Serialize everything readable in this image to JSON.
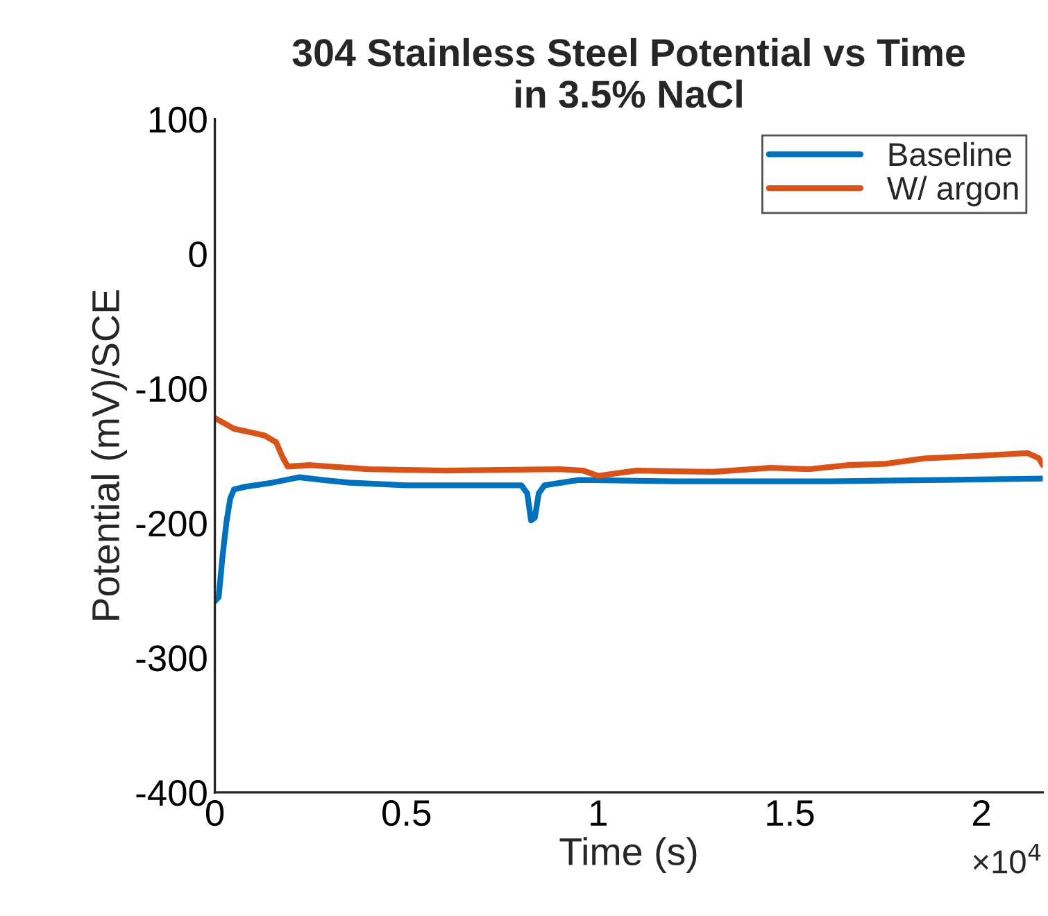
{
  "chart_data": {
    "type": "line",
    "title": "304 Stainless Steel Potential vs Time\nin 3.5% NaCl",
    "xlabel": "Time (s)",
    "ylabel": "Potential (mV)/SCE",
    "xlim": [
      0,
      2.16
    ],
    "ylim": [
      -400,
      100
    ],
    "xticks": [
      0,
      0.5,
      1,
      1.5,
      2
    ],
    "yticks": [
      -400,
      -300,
      -200,
      -100,
      0,
      100
    ],
    "annotations": [
      "×10$^{4}$"
    ],
    "legend": "top right",
    "grid": false,
    "marker": "none",
    "line_style": "solid",
    "series": [
      {
        "name": "Baseline",
        "color": "#0072bd",
        "x": [
          0,
          0.01,
          0.02,
          0.03,
          0.04,
          0.05,
          0.08,
          0.15,
          0.22,
          0.28,
          0.35,
          0.5,
          0.65,
          0.8,
          0.815,
          0.825,
          0.835,
          0.845,
          0.86,
          0.95,
          1.2,
          1.6,
          1.9,
          2.16
        ],
        "values": [
          -258,
          -255,
          -225,
          -200,
          -182,
          -175,
          -173,
          -170,
          -166,
          -168,
          -170,
          -172,
          -172,
          -172,
          -178,
          -198,
          -196,
          -178,
          -172,
          -168,
          -169,
          -169,
          -168,
          -167
        ]
      },
      {
        "name": "W/ argon",
        "color": "#d95319",
        "x": [
          0,
          0.05,
          0.1,
          0.13,
          0.16,
          0.175,
          0.19,
          0.25,
          0.4,
          0.6,
          0.9,
          0.96,
          1.0,
          1.05,
          1.1,
          1.3,
          1.45,
          1.55,
          1.65,
          1.75,
          1.85,
          2.0,
          2.12,
          2.15,
          2.16
        ],
        "values": [
          -122,
          -130,
          -133,
          -135,
          -140,
          -150,
          -158,
          -157,
          -160,
          -161,
          -160,
          -161,
          -165,
          -163,
          -161,
          -162,
          -159,
          -160,
          -157,
          -156,
          -152,
          -150,
          -148,
          -152,
          -157
        ]
      }
    ]
  }
}
